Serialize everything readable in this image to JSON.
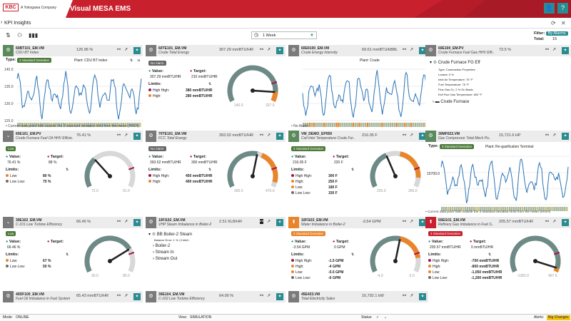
{
  "header": {
    "logo": "KBC",
    "logo_sub": "A Yokogawa Company",
    "title": "Visual MESA EMS",
    "user_icon": "user-icon",
    "help_icon": "help-icon"
  },
  "subbar": {
    "title": "KPI Insights"
  },
  "toolbar": {
    "period": "1 Week",
    "filter_label": "Filter:",
    "filter_value": "By Alarms",
    "total_label": "Total:",
    "total_value": "15"
  },
  "colors": {
    "brand_red": "#c8202d",
    "teal": "#2a8c91",
    "green": "#5c8a5c",
    "orange": "#e8852b",
    "red": "#c8202d",
    "alarm_green": "#4d7a3a"
  },
  "tiles": [
    {
      "id": "t1",
      "name": "60BT101_EM.VM",
      "desc": "CDU BT Index",
      "value": "126.96 %",
      "type_label": "Type:",
      "type_badge": "3 Standard Deviation",
      "plant": "Plant: CDU BT Index",
      "yticks": [
        "140.0",
        "135.0",
        "130.0",
        "125.0"
      ],
      "note": "• Current data point falls outside the 3 standard deviation limit from the mean (HIGH)"
    },
    {
      "id": "t2",
      "name": "60TE101_EM.VM",
      "desc": "Crude Total Energy",
      "value": "307.29 mmBTU/HR",
      "badge": "No Alarm",
      "value_label": "Value:",
      "value_num": "307.29 mmBTU/HR",
      "target_label": "Target:",
      "target_num": "210 mmBTU/HR",
      "limits_label": "Limits:",
      "limits": [
        {
          "label": "High High:",
          "val": "380 mmBTU/HR"
        },
        {
          "label": "High:",
          "val": "280 mmBTU/HR"
        }
      ],
      "gmin": "140.0",
      "gmax": "327.0"
    },
    {
      "id": "t3",
      "name": "60EII100_EM.VM",
      "desc": "Crude Energy Intensity",
      "value": "69.61 mmBTU/kBBL",
      "plant": "Plant: Crude",
      "note": "• No Alarm"
    },
    {
      "id": "t4",
      "name": "60E100_EM.PV",
      "desc": "Crude Furnace Fuel Gas HHV Effi..",
      "value": "73.5 %",
      "tree_title": "Crude Furnace FG Eff",
      "details": [
        "Type: Combustion Properties",
        "Losses: 0 %",
        "Inlet Air Temperature: 75 °F",
        "Fuel Temperature: 75 °F",
        "Flue Gas O₂: 2 % On Basis",
        "Exit Flue Gas Temperature: 600 °F"
      ],
      "child": "Crude Furnace"
    },
    {
      "id": "t5",
      "name": "60E101_EM.PV",
      "desc": "Crude Furnace Fuel Oil HHV Efficie..",
      "value": "76.41 %",
      "badge": "Low",
      "value_label": "Value:",
      "value_num": "76.41 %",
      "target_label": "Target:",
      "target_num": "88 %",
      "limits_label": "Limits:",
      "limits": [
        {
          "label": "Low:",
          "val": "80 %"
        },
        {
          "label": "Low Low:",
          "val": "75 %"
        }
      ],
      "gmin": "72.0",
      "gmax": "91.0"
    },
    {
      "id": "t6",
      "name": "70TE101_EM.VM",
      "desc": "FCC Total Energy",
      "value": "393.52 mmBTU/HR",
      "badge": "No Alarm",
      "value_label": "Value:",
      "value_num": "393.52 mmBTU/HR",
      "target_label": "Target:",
      "target_num": "300 mmBTU/HR",
      "limits_label": "Limits:",
      "limits": [
        {
          "label": "High High:",
          "val": "450 mmBTU/HR"
        },
        {
          "label": "High:",
          "val": "400 mmBTU/HR"
        }
      ],
      "gmin": "300.0",
      "gmax": "470.0"
    },
    {
      "id": "t7",
      "name": "VM_DEMO_EP059",
      "desc": "Coil Inlet Temperature Crude Fur..",
      "value": "216.05 F",
      "badge": "3 Standard Deviation",
      "value_label": "Value:",
      "value_num": "216.05 F",
      "target_label": "Target:",
      "target_num": "220 F",
      "limits_label": "Limits:",
      "limits": [
        {
          "label": "High High:",
          "val": "300 F"
        },
        {
          "label": "High:",
          "val": "250 F"
        },
        {
          "label": "Low:",
          "val": "180 F"
        },
        {
          "label": "Low Low:",
          "val": "150 F"
        }
      ],
      "gmin": "220.0",
      "gmax": "260.0"
    },
    {
      "id": "t8",
      "name": "30MF022.VM",
      "desc": "Gas Compressor Total Mech Po..",
      "value": "15,721.6 HP",
      "type_label": "Type:",
      "type_badge": "3 Standard Deviation",
      "plant": "Plant: Re-gasification Terminal",
      "ytick": "15700.0",
      "note": "• Current data point falls outside the 3 standard deviation limit from the mean (HIGH)"
    },
    {
      "id": "t9",
      "name": "30E102_EM.VM",
      "desc": "C-101 Low Turbine Efficiency",
      "value": "66.46 %",
      "badge": "Low",
      "value_label": "Value:",
      "value_num": "66.46 %",
      "target_label": "Target:",
      "target_num": "",
      "limits_label": "Limits:",
      "limits": [
        {
          "label": "Low:",
          "val": "67 %"
        },
        {
          "label": "Low Low:",
          "val": "50 %"
        }
      ],
      "gmin": "30.0",
      "gmax": "80.0"
    },
    {
      "id": "t10",
      "name": "10FI102_EM.VM",
      "desc": "VHP Steam Imbalance in Boiler-2",
      "value": "2.51 KLB/HR",
      "tree_title": "BB Boiler-2 Steam",
      "balance": "Balance Error: 1 % | 0 klb/h",
      "items": [
        "Boiler-2",
        "Stream In",
        "Stream Out"
      ]
    },
    {
      "id": "t11",
      "name": "10FI103_EM.VM",
      "desc": "Water Imbalance in Boiler-2",
      "value": "-3.54 GPM",
      "badge": "3 Standard Deviation",
      "value_label": "Value:",
      "value_num": "-3.54 GPM",
      "target_label": "Target:",
      "target_num": "0 GPM",
      "limits_label": "Limits:",
      "limits": [
        {
          "label": "High High:",
          "val": "-1.5 GPM"
        },
        {
          "label": "High:",
          "val": "-4 GPM"
        },
        {
          "label": "Low:",
          "val": "-5.5 GPM"
        },
        {
          "label": "Low Low:",
          "val": "-6 GPM"
        }
      ],
      "gmin": "-4.0",
      "gmax": "-2.0"
    },
    {
      "id": "t12",
      "name": "60EI101_EM.VM",
      "desc": "Refinery Gas Imbalance in Fuel S..",
      "value": "205.57 mmBTU/HR",
      "badge": "3 Standard Deviation",
      "value_label": "Value:",
      "value_num": "205.57 mmBTU/HR",
      "target_label": "Target:",
      "target_num": "0 mmBTU/HR",
      "limits_label": "Limits:",
      "limits": [
        {
          "label": "High High:",
          "val": "-700 mmBTU/HR"
        },
        {
          "label": "High:",
          "val": "-800 mmBTU/HR"
        },
        {
          "label": "Low:",
          "val": "-1,050 mmBTU/HR"
        },
        {
          "label": "Low Low:",
          "val": "-1,200 mmBTU/HR"
        }
      ],
      "gmin": "-1382.0",
      "gmax": "467.0"
    },
    {
      "id": "t13",
      "name": "40DF100_EM.VM",
      "desc": "Fuel Oil Imbalance in Fuel System",
      "value": "65.43 mmBTU/HR"
    },
    {
      "id": "t14",
      "name": "30E104_EM.VM",
      "desc": "C-102 Low Turbine Efficiency",
      "value": "64.06 %"
    },
    {
      "id": "t15",
      "name": "45E433.VM",
      "desc": "Total Electricity Sales",
      "value": "16,792.1 kW"
    }
  ],
  "footer": {
    "mode_label": "Mode:",
    "mode": "ONLINE",
    "view_label": "View:",
    "view": "SIMULATION",
    "status_label": "Status:",
    "alerts_label": "Alerts:",
    "alerts": "Big Changes"
  }
}
